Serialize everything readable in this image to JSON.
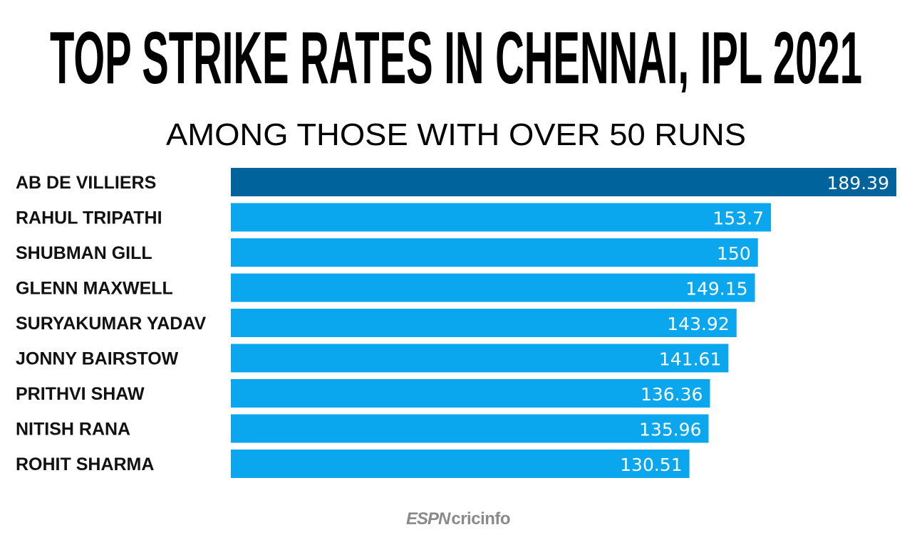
{
  "chart_data": {
    "type": "bar",
    "orientation": "horizontal",
    "title": "TOP STRIKE RATES IN CHENNAI, IPL 2021",
    "subtitle": "AMONG THOSE WITH OVER 50 RUNS",
    "categories": [
      "AB DE VILLIERS",
      "RAHUL TRIPATHI",
      "SHUBMAN GILL",
      "GLENN MAXWELL",
      "SURYAKUMAR YADAV",
      "JONNY BAIRSTOW",
      "PRITHVI SHAW",
      "NITISH RANA",
      "ROHIT SHARMA"
    ],
    "values": [
      189.39,
      153.7,
      150,
      149.15,
      143.92,
      141.61,
      136.36,
      135.96,
      130.51
    ],
    "value_labels": [
      "189.39",
      "153.7",
      "150",
      "149.15",
      "143.92",
      "141.61",
      "136.36",
      "135.96",
      "130.51"
    ],
    "xlim": [
      0,
      189.39
    ],
    "grid": false,
    "colors": {
      "highlight": "#00639c",
      "default": "#0aa7ef"
    }
  },
  "branding": {
    "espn": "ESPN",
    "cricinfo": "cricinfo"
  }
}
